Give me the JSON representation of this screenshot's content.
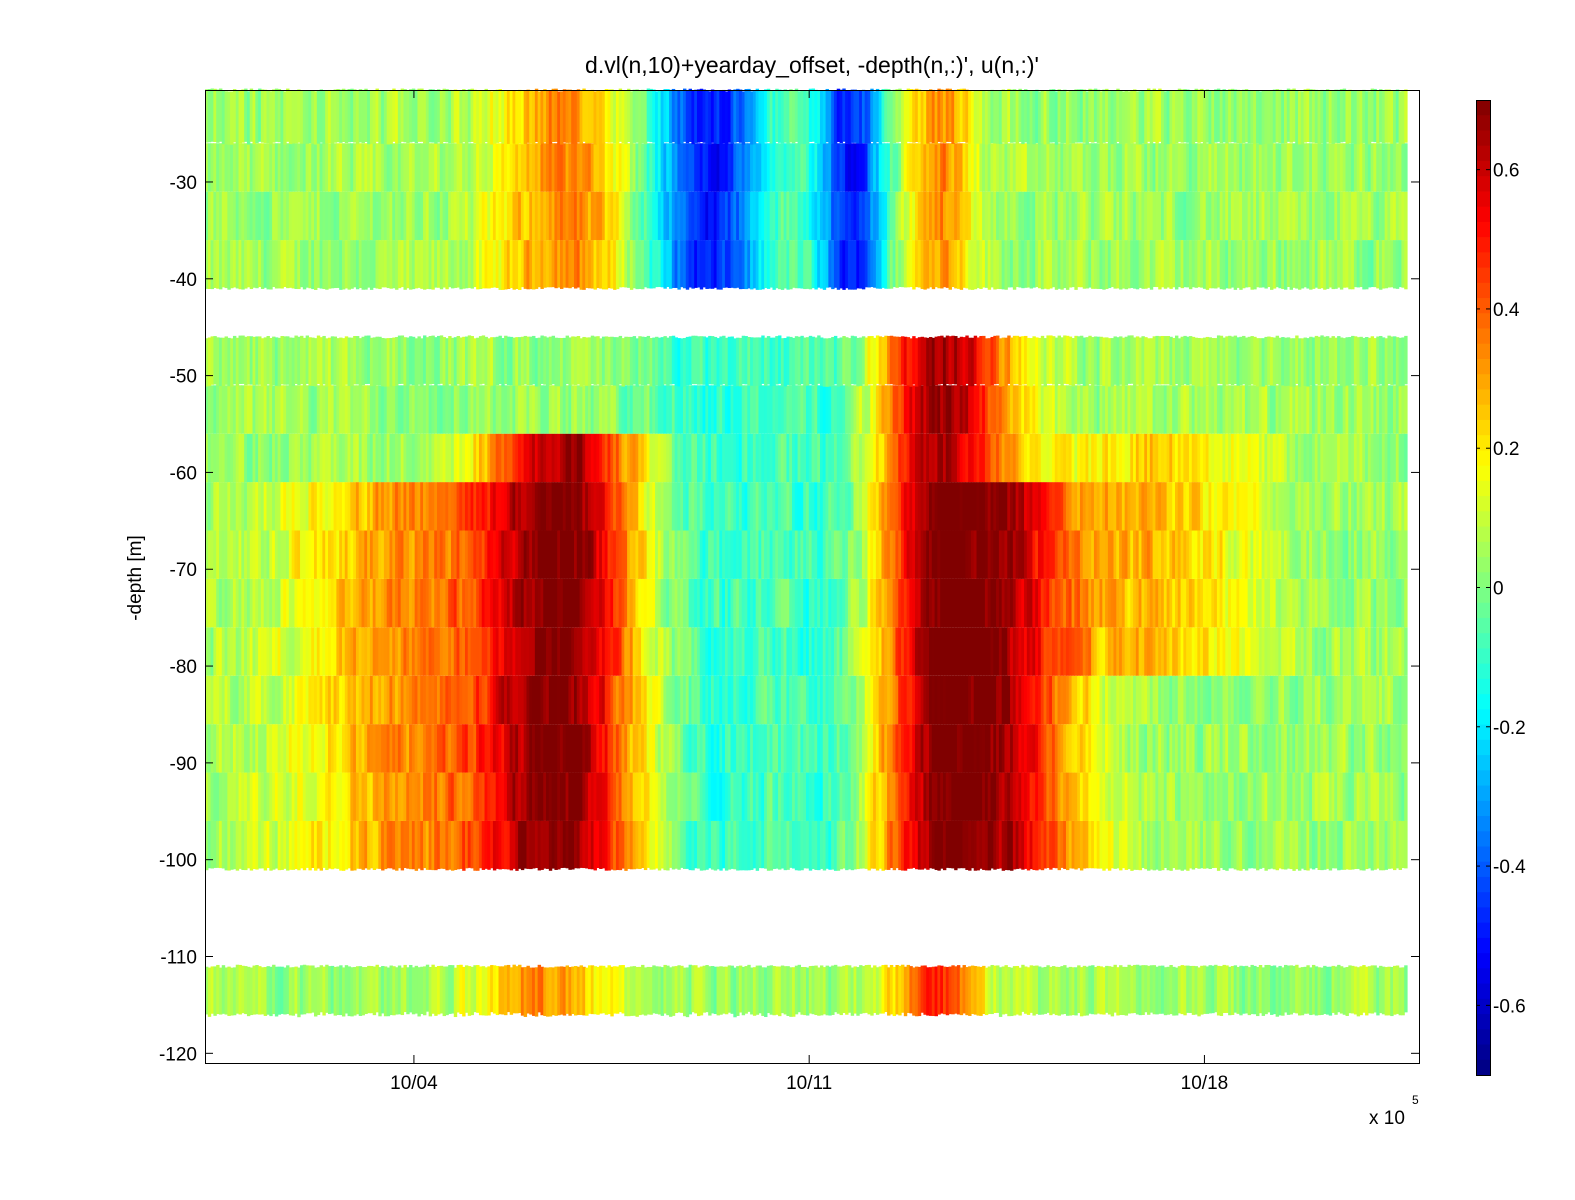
{
  "chart_data": {
    "type": "heatmap",
    "title": "d.vl(n,10)+yearday_offset, -depth(n,:)', u(n,:)'",
    "xlabel": "",
    "ylabel": "-depth [m]",
    "x_exponent_note": "x 10",
    "x_exponent_power": "5",
    "x_ticks": [
      "10/04",
      "10/11",
      "10/18"
    ],
    "x_range_days": [
      -3.7,
      17.8
    ],
    "y_ticks": [
      -30,
      -40,
      -50,
      -60,
      -70,
      -80,
      -90,
      -100,
      -110,
      -120
    ],
    "ylim": [
      -121,
      -20.5
    ],
    "colorbar": {
      "clim": [
        -0.7,
        0.7
      ],
      "ticks": [
        0.6,
        0.4,
        0.2,
        0,
        -0.2,
        -0.4,
        -0.6
      ],
      "colormap": "jet"
    },
    "depth_bands": [
      {
        "range": [
          -41,
          -20.5
        ],
        "layers": [
          -41,
          -36,
          -31,
          -26,
          -20.5
        ]
      },
      {
        "range": [
          -101,
          -46
        ],
        "layers": [
          -101,
          -96,
          -91,
          -86,
          -81,
          -76,
          -71,
          -66,
          -61,
          -56,
          -51,
          -46
        ]
      },
      {
        "range": [
          -116,
          -111
        ],
        "layers": [
          -116,
          -111
        ]
      }
    ],
    "features": [
      {
        "day": 0.0,
        "depth_range": [
          -101,
          -61
        ],
        "u": 0.28,
        "width": 2.2
      },
      {
        "day": 2.6,
        "depth_range": [
          -101,
          -56
        ],
        "u": 0.62,
        "width": 1.4
      },
      {
        "day": 2.6,
        "depth_range": [
          -41,
          -20.5
        ],
        "u": 0.3,
        "width": 1.2
      },
      {
        "day": 5.2,
        "depth_range": [
          -41,
          -20.5
        ],
        "u": -0.55,
        "width": 1.0
      },
      {
        "day": 5.2,
        "depth_range": [
          -101,
          -46
        ],
        "u": -0.15,
        "width": 1.3
      },
      {
        "day": 7.7,
        "depth_range": [
          -41,
          -20.5
        ],
        "u": -0.55,
        "width": 0.6
      },
      {
        "day": 7.5,
        "depth_range": [
          -101,
          -46
        ],
        "u": -0.18,
        "width": 1.0
      },
      {
        "day": 9.3,
        "depth_range": [
          -101,
          -46
        ],
        "u": 0.62,
        "width": 1.3
      },
      {
        "day": 9.3,
        "depth_range": [
          -41,
          -20.5
        ],
        "u": 0.3,
        "width": 0.6
      },
      {
        "day": 10.8,
        "depth_range": [
          -101,
          -61
        ],
        "u": 0.35,
        "width": 1.2
      },
      {
        "day": 13.2,
        "depth_range": [
          -81,
          -56
        ],
        "u": 0.22,
        "width": 1.6
      },
      {
        "day": 9.2,
        "depth_range": [
          -116,
          -111
        ],
        "u": 0.45,
        "width": 0.8
      },
      {
        "day": 2.2,
        "depth_range": [
          -116,
          -111
        ],
        "u": 0.3,
        "width": 1.2
      }
    ]
  }
}
